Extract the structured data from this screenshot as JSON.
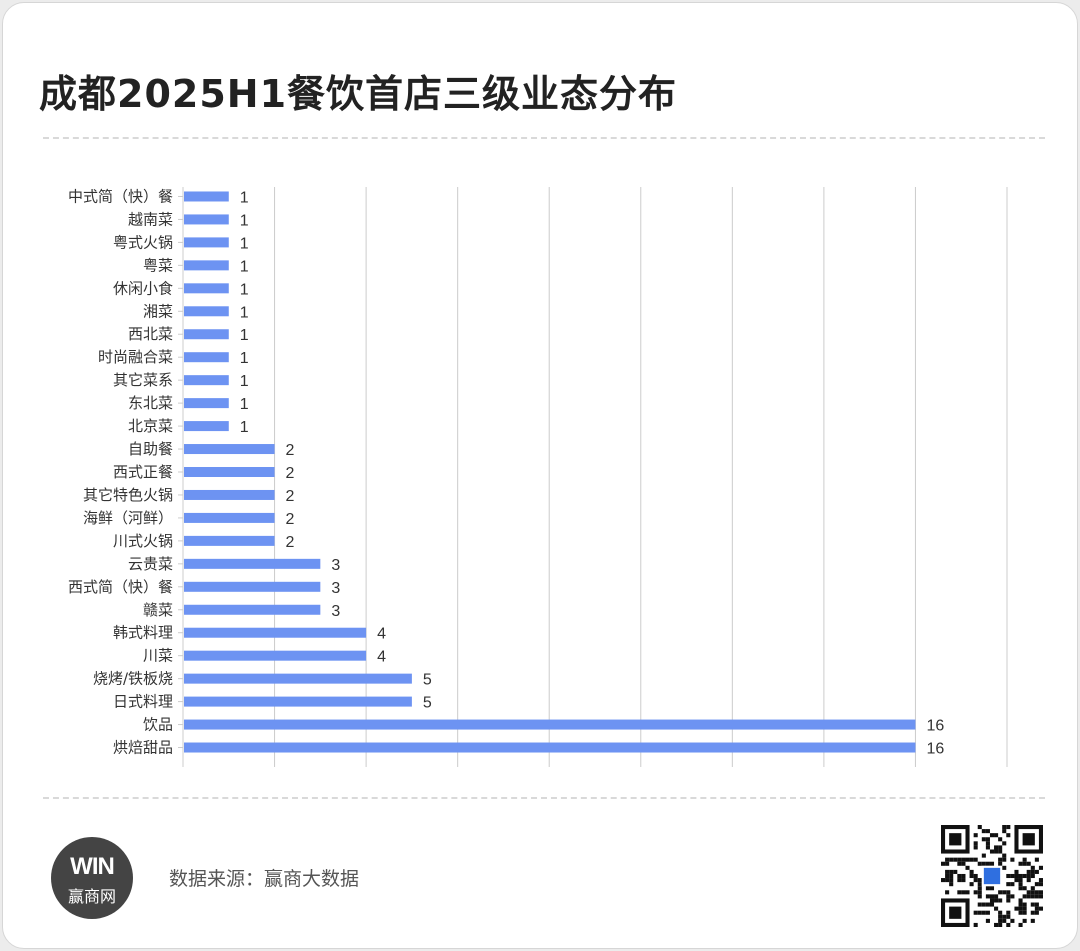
{
  "title": "成都2025H1餐饮首店三级业态分布",
  "source_text": "数据来源：赢商大数据",
  "logo": {
    "mark": "WIN",
    "text": "赢商网"
  },
  "colors": {
    "bar": "#6d93f2",
    "grid": "#cccccc",
    "text": "#333333"
  },
  "chart_data": {
    "type": "bar",
    "orientation": "horizontal",
    "title": "成都2025H1餐饮首店三级业态分布",
    "xlabel": "",
    "ylabel": "",
    "xlim": [
      0,
      18
    ],
    "grid": true,
    "categories": [
      "中式简（快）餐",
      "越南菜",
      "粤式火锅",
      "粤菜",
      "休闲小食",
      "湘菜",
      "西北菜",
      "时尚融合菜",
      "其它菜系",
      "东北菜",
      "北京菜",
      "自助餐",
      "西式正餐",
      "其它特色火锅",
      "海鲜（河鲜）",
      "川式火锅",
      "云贵菜",
      "西式简（快）餐",
      "赣菜",
      "韩式料理",
      "川菜",
      "烧烤/铁板烧",
      "日式料理",
      "饮品",
      "烘焙甜品"
    ],
    "values": [
      1,
      1,
      1,
      1,
      1,
      1,
      1,
      1,
      1,
      1,
      1,
      2,
      2,
      2,
      2,
      2,
      3,
      3,
      3,
      4,
      4,
      5,
      5,
      16,
      16
    ]
  }
}
